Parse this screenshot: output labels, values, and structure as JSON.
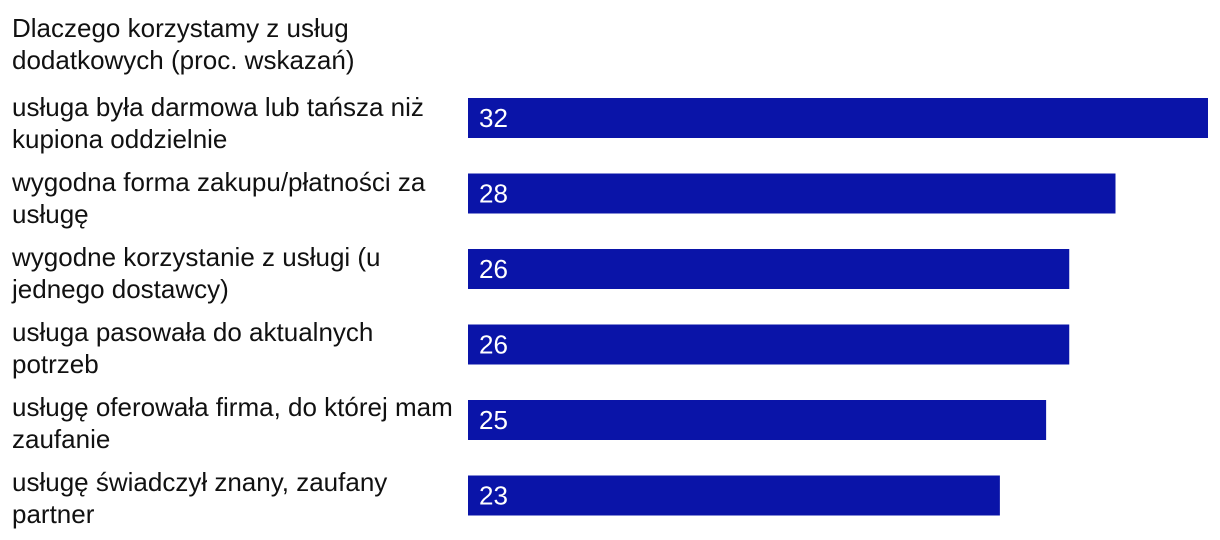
{
  "chart_data": {
    "type": "bar",
    "orientation": "horizontal",
    "title": "Dlaczego korzystamy z usług dodatkowych (proc. wskazań)",
    "xlabel": "",
    "ylabel": "",
    "xlim": [
      0,
      32
    ],
    "grid": false,
    "legend": "none",
    "categories": [
      "usługa była darmowa lub tańsza niż kupiona oddzielnie",
      "wygodna forma zakupu/płatności za usługę",
      "wygodne korzystanie z usługi (u jednego dostawcy)",
      "usługa pasowała do aktualnych potrzeb",
      "usługę oferowała firma, do której mam zaufanie",
      "usługę świadczył znany, zaufany partner"
    ],
    "values": [
      32,
      28,
      26,
      26,
      25,
      23
    ],
    "bar_color": "#0a14a8",
    "value_label_color": "#ffffff"
  }
}
